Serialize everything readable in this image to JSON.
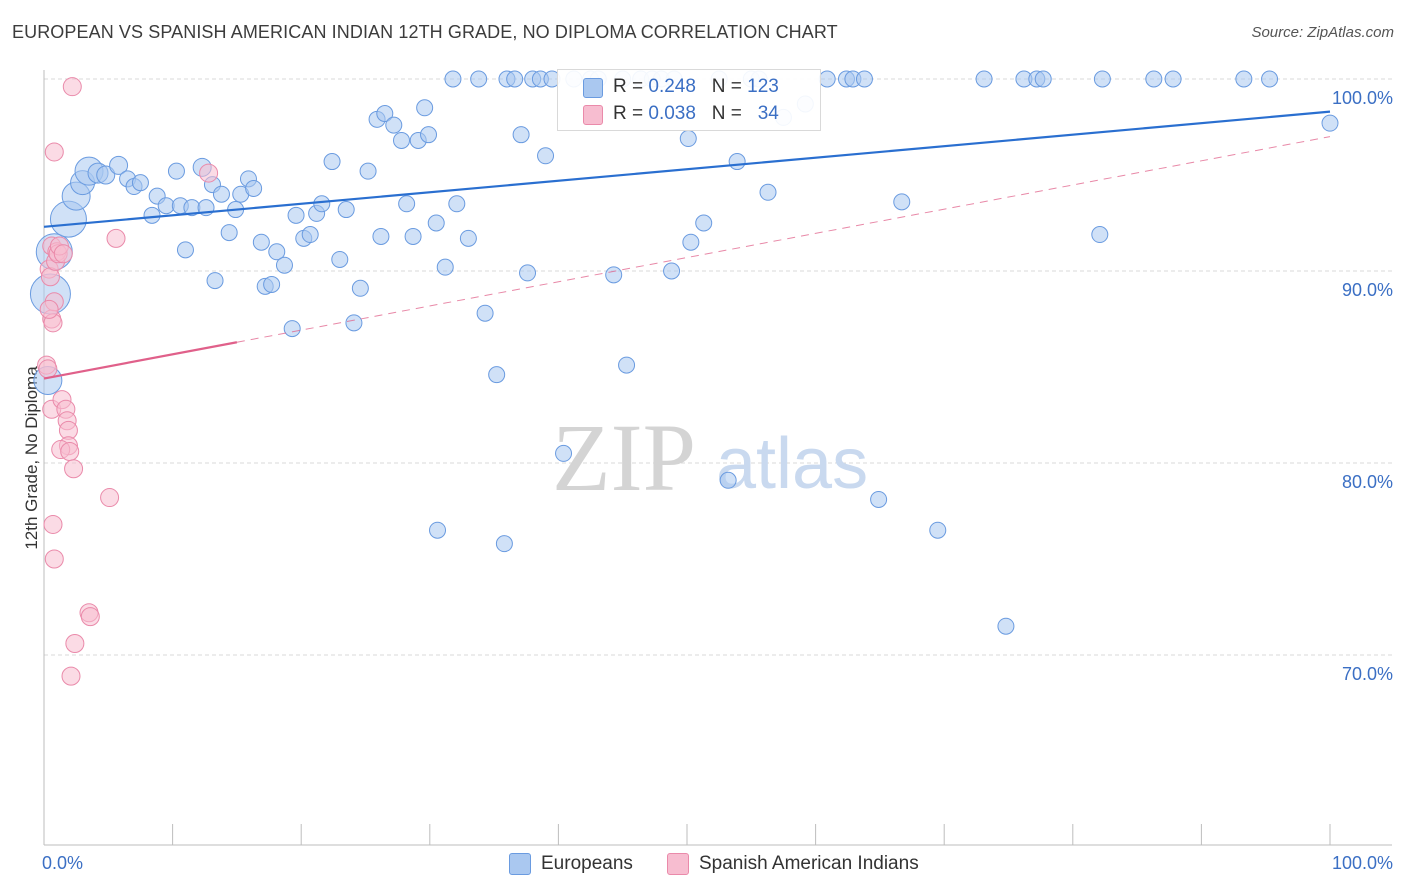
{
  "header": {
    "title": "EUROPEAN VS SPANISH AMERICAN INDIAN 12TH GRADE, NO DIPLOMA CORRELATION CHART",
    "source": "Source: ZipAtlas.com"
  },
  "colors": {
    "blue_fill": "#aac8f0",
    "blue_stroke": "#6a9be0",
    "blue_line": "#2a6fd0",
    "pink_fill": "#f7bdd0",
    "pink_stroke": "#ea8aaa",
    "pink_line": "#e0608a",
    "grid": "#d8d8d8",
    "axis_text": "#3b6fc4"
  },
  "stats": {
    "europeans": {
      "r_label": "R = ",
      "r_value": "0.248",
      "n_label": "N = ",
      "n_value": "123"
    },
    "spanish": {
      "r_label": "R = ",
      "r_value": "0.038",
      "n_label": "N = ",
      "n_value": "34"
    }
  },
  "legend": {
    "europeans": "Europeans",
    "spanish": "Spanish American Indians"
  },
  "watermark": {
    "zip": "ZIP",
    "atlas": "atlas"
  },
  "chart_data": {
    "type": "scatter",
    "title": "EUROPEAN VS SPANISH AMERICAN INDIAN 12TH GRADE, NO DIPLOMA CORRELATION CHART",
    "xlabel": "",
    "ylabel": "12th Grade, No Diploma",
    "xlim": [
      0,
      100
    ],
    "ylim": [
      60.5,
      101.5
    ],
    "x_tick_labels": [
      "0.0%",
      "100.0%"
    ],
    "y_ticks": [
      100,
      90,
      80,
      70
    ],
    "y_tick_labels": [
      "100.0%",
      "90.0%",
      "80.0%",
      "70.0%"
    ],
    "grid": true,
    "series": [
      {
        "name": "Europeans",
        "r": 0.248,
        "n": 123,
        "trend": {
          "x": [
            0,
            100
          ],
          "y": [
            92.3,
            98.3
          ],
          "dashed_from": null
        },
        "points": [
          [
            0.3,
            84.3,
            14
          ],
          [
            0.5,
            88.8,
            20
          ],
          [
            0.8,
            91.0,
            18
          ],
          [
            1.9,
            92.7,
            18
          ],
          [
            2.5,
            93.9,
            14
          ],
          [
            3.0,
            94.6,
            12
          ],
          [
            3.5,
            95.2,
            14
          ],
          [
            4.2,
            95.1,
            10
          ],
          [
            4.8,
            95.0,
            9
          ],
          [
            5.8,
            95.5,
            9
          ],
          [
            6.5,
            94.8,
            8
          ],
          [
            7.0,
            94.4,
            8
          ],
          [
            7.5,
            94.6,
            8
          ],
          [
            8.4,
            92.9,
            8
          ],
          [
            8.8,
            93.9,
            8
          ],
          [
            9.5,
            93.4,
            8
          ],
          [
            10.3,
            95.2,
            8
          ],
          [
            10.6,
            93.4,
            8
          ],
          [
            11.0,
            91.1,
            8
          ],
          [
            11.5,
            93.3,
            8
          ],
          [
            12.3,
            95.4,
            9
          ],
          [
            12.6,
            93.3,
            8
          ],
          [
            13.1,
            94.5,
            8
          ],
          [
            13.3,
            89.5,
            8
          ],
          [
            13.8,
            94.0,
            8
          ],
          [
            14.4,
            92.0,
            8
          ],
          [
            14.9,
            93.2,
            8
          ],
          [
            15.3,
            94.0,
            8
          ],
          [
            15.9,
            94.8,
            8
          ],
          [
            16.3,
            94.3,
            8
          ],
          [
            16.9,
            91.5,
            8
          ],
          [
            17.2,
            89.2,
            8
          ],
          [
            17.7,
            89.3,
            8
          ],
          [
            18.1,
            91.0,
            8
          ],
          [
            18.7,
            90.3,
            8
          ],
          [
            19.3,
            87.0,
            8
          ],
          [
            19.6,
            92.9,
            8
          ],
          [
            20.2,
            91.7,
            8
          ],
          [
            20.7,
            91.9,
            8
          ],
          [
            21.2,
            93.0,
            8
          ],
          [
            21.6,
            93.5,
            8
          ],
          [
            22.4,
            95.7,
            8
          ],
          [
            23.0,
            90.6,
            8
          ],
          [
            23.5,
            93.2,
            8
          ],
          [
            24.1,
            87.3,
            8
          ],
          [
            24.6,
            89.1,
            8
          ],
          [
            25.2,
            95.2,
            8
          ],
          [
            25.9,
            97.9,
            8
          ],
          [
            26.2,
            91.8,
            8
          ],
          [
            26.5,
            98.2,
            8
          ],
          [
            27.2,
            97.6,
            8
          ],
          [
            27.8,
            96.8,
            8
          ],
          [
            28.2,
            93.5,
            8
          ],
          [
            28.7,
            91.8,
            8
          ],
          [
            29.1,
            96.8,
            8
          ],
          [
            29.6,
            98.5,
            8
          ],
          [
            29.9,
            97.1,
            8
          ],
          [
            30.5,
            92.5,
            8
          ],
          [
            31.2,
            90.2,
            8
          ],
          [
            31.8,
            100.0,
            8
          ],
          [
            32.1,
            93.5,
            8
          ],
          [
            33.0,
            91.7,
            8
          ],
          [
            33.8,
            100.0,
            8
          ],
          [
            34.3,
            87.8,
            8
          ],
          [
            35.2,
            84.6,
            8
          ],
          [
            36.0,
            100.0,
            8
          ],
          [
            36.6,
            100.0,
            8
          ],
          [
            37.1,
            97.1,
            8
          ],
          [
            37.6,
            89.9,
            8
          ],
          [
            38.0,
            100.0,
            8
          ],
          [
            38.6,
            100.0,
            8
          ],
          [
            39.0,
            96.0,
            8
          ],
          [
            39.5,
            100.0,
            8
          ],
          [
            40.4,
            80.5,
            8
          ],
          [
            41.2,
            100.0,
            8
          ],
          [
            42.5,
            100.0,
            8
          ],
          [
            43.1,
            100.0,
            8
          ],
          [
            44.3,
            89.8,
            8
          ],
          [
            45.0,
            100.0,
            8
          ],
          [
            45.3,
            85.1,
            8
          ],
          [
            46.4,
            100.0,
            8
          ],
          [
            47.3,
            100.0,
            8
          ],
          [
            48.0,
            100.0,
            8
          ],
          [
            48.8,
            90.0,
            8
          ],
          [
            49.0,
            100.0,
            8
          ],
          [
            50.1,
            96.9,
            8
          ],
          [
            50.3,
            91.5,
            8
          ],
          [
            51.3,
            92.5,
            8
          ],
          [
            52.5,
            100.0,
            8
          ],
          [
            53.2,
            79.1,
            8
          ],
          [
            53.9,
            95.7,
            8
          ],
          [
            55.0,
            100.0,
            8
          ],
          [
            55.6,
            100.0,
            8
          ],
          [
            56.3,
            94.1,
            8
          ],
          [
            57.5,
            98.0,
            8
          ],
          [
            59.2,
            98.7,
            8
          ],
          [
            60.9,
            100.0,
            8
          ],
          [
            62.4,
            100.0,
            8
          ],
          [
            62.9,
            100.0,
            8
          ],
          [
            63.8,
            100.0,
            8
          ],
          [
            64.9,
            78.1,
            8
          ],
          [
            66.7,
            93.6,
            8
          ],
          [
            69.5,
            76.5,
            8
          ],
          [
            73.1,
            100.0,
            8
          ],
          [
            74.8,
            71.5,
            8
          ],
          [
            76.2,
            100.0,
            8
          ],
          [
            77.2,
            100.0,
            8
          ],
          [
            77.7,
            100.0,
            8
          ],
          [
            82.1,
            91.9,
            8
          ],
          [
            82.3,
            100.0,
            8
          ],
          [
            86.3,
            100.0,
            8
          ],
          [
            87.8,
            100.0,
            8
          ],
          [
            93.3,
            100.0,
            8
          ],
          [
            95.3,
            100.0,
            8
          ],
          [
            100.0,
            97.7,
            8
          ],
          [
            30.6,
            76.5,
            8
          ],
          [
            35.8,
            75.8,
            8
          ]
        ]
      },
      {
        "name": "Spanish American Indians",
        "r": 0.038,
        "n": 34,
        "trend": {
          "x": [
            0,
            100
          ],
          "y": [
            84.4,
            97.0
          ],
          "solid_until_x": 15
        },
        "points": [
          [
            0.2,
            85.1,
            9
          ],
          [
            0.3,
            84.9,
            9
          ],
          [
            0.4,
            90.1,
            9
          ],
          [
            0.5,
            89.7,
            9
          ],
          [
            0.6,
            91.3,
            9
          ],
          [
            0.6,
            87.5,
            9
          ],
          [
            0.7,
            87.3,
            9
          ],
          [
            0.8,
            88.4,
            9
          ],
          [
            0.9,
            90.5,
            9
          ],
          [
            1.0,
            91.0,
            9
          ],
          [
            1.1,
            90.9,
            9
          ],
          [
            1.2,
            91.3,
            9
          ],
          [
            0.8,
            96.2,
            9
          ],
          [
            2.2,
            99.6,
            9
          ],
          [
            0.6,
            82.8,
            9
          ],
          [
            1.4,
            83.3,
            9
          ],
          [
            1.7,
            82.8,
            9
          ],
          [
            1.8,
            82.2,
            9
          ],
          [
            1.9,
            81.7,
            9
          ],
          [
            1.9,
            80.9,
            9
          ],
          [
            1.3,
            80.7,
            9
          ],
          [
            2.0,
            80.6,
            9
          ],
          [
            2.3,
            79.7,
            9
          ],
          [
            5.1,
            78.2,
            9
          ],
          [
            0.7,
            76.8,
            9
          ],
          [
            0.8,
            75.0,
            9
          ],
          [
            3.5,
            72.2,
            9
          ],
          [
            3.6,
            72.0,
            9
          ],
          [
            2.4,
            70.6,
            9
          ],
          [
            2.1,
            68.9,
            9
          ],
          [
            5.6,
            91.7,
            9
          ],
          [
            12.8,
            95.1,
            9
          ],
          [
            1.5,
            90.9,
            9
          ],
          [
            0.4,
            88.0,
            9
          ]
        ]
      }
    ]
  }
}
